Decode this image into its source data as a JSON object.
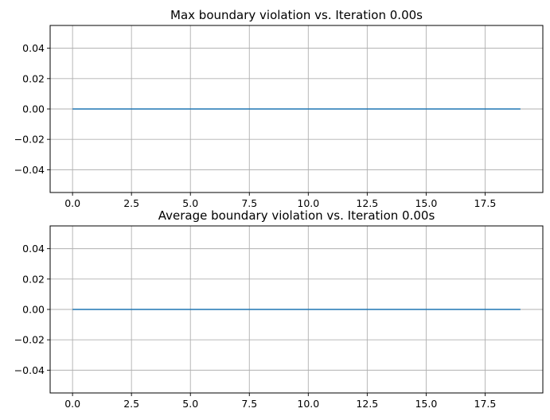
{
  "chart_data": [
    {
      "type": "line",
      "title": "Max boundary violation vs. Iteration 0.00s",
      "xlabel": "",
      "ylabel": "",
      "x": [
        0,
        1,
        2,
        3,
        4,
        5,
        6,
        7,
        8,
        9,
        10,
        11,
        12,
        13,
        14,
        15,
        16,
        17,
        18,
        19
      ],
      "series": [
        {
          "values": [
            0,
            0,
            0,
            0,
            0,
            0,
            0,
            0,
            0,
            0,
            0,
            0,
            0,
            0,
            0,
            0,
            0,
            0,
            0,
            0
          ],
          "color": "#1f77b4"
        }
      ],
      "xlim": [
        -0.95,
        19.95
      ],
      "ylim": [
        -0.055,
        0.055
      ],
      "xticks": [
        0.0,
        2.5,
        5.0,
        7.5,
        10.0,
        12.5,
        15.0,
        17.5
      ],
      "xtick_labels": [
        "0.0",
        "2.5",
        "5.0",
        "7.5",
        "10.0",
        "12.5",
        "15.0",
        "17.5"
      ],
      "yticks": [
        -0.04,
        -0.02,
        0.0,
        0.02,
        0.04
      ],
      "ytick_labels": [
        "−0.04",
        "−0.02",
        "0.00",
        "0.02",
        "0.04"
      ],
      "grid": true,
      "legend": "none"
    },
    {
      "type": "line",
      "title": "Average boundary violation vs. Iteration 0.00s",
      "xlabel": "",
      "ylabel": "",
      "x": [
        0,
        1,
        2,
        3,
        4,
        5,
        6,
        7,
        8,
        9,
        10,
        11,
        12,
        13,
        14,
        15,
        16,
        17,
        18,
        19
      ],
      "series": [
        {
          "values": [
            0,
            0,
            0,
            0,
            0,
            0,
            0,
            0,
            0,
            0,
            0,
            0,
            0,
            0,
            0,
            0,
            0,
            0,
            0,
            0
          ],
          "color": "#1f77b4"
        }
      ],
      "xlim": [
        -0.95,
        19.95
      ],
      "ylim": [
        -0.055,
        0.055
      ],
      "xticks": [
        0.0,
        2.5,
        5.0,
        7.5,
        10.0,
        12.5,
        15.0,
        17.5
      ],
      "xtick_labels": [
        "0.0",
        "2.5",
        "5.0",
        "7.5",
        "10.0",
        "12.5",
        "15.0",
        "17.5"
      ],
      "yticks": [
        -0.04,
        -0.02,
        0.0,
        0.02,
        0.04
      ],
      "ytick_labels": [
        "−0.04",
        "−0.02",
        "0.00",
        "0.02",
        "0.04"
      ],
      "grid": true,
      "legend": "none"
    }
  ]
}
